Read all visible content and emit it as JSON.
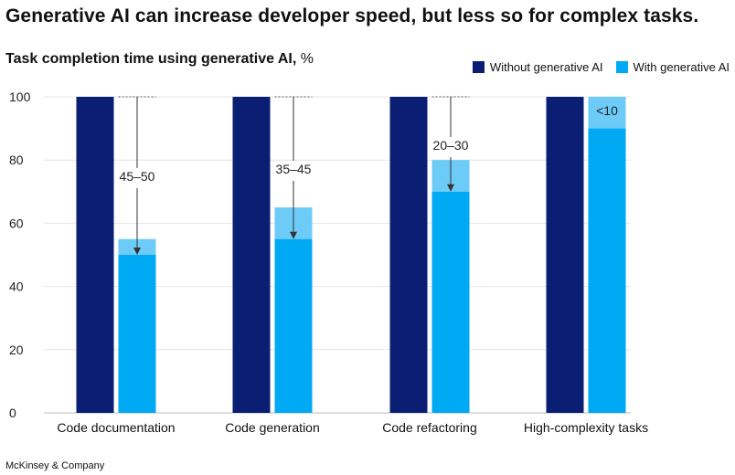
{
  "headline": "Generative AI can increase developer speed, but less so for complex tasks.",
  "subtitle_bold": "Task completion time using generative AI,",
  "subtitle_unit": "%",
  "source": "McKinsey & Company",
  "colors": {
    "without": "#0a1f73",
    "with": "#00a9f4",
    "range": "#6dcbf7",
    "grid": "#e4e4e4",
    "axis": "#bdbdbd"
  },
  "chart_data": {
    "type": "bar",
    "title": "Task completion time using generative AI, %",
    "categories": [
      "Code documentation",
      "Code generation",
      "Code refactoring",
      "High-complexity tasks"
    ],
    "yticks": [
      0,
      20,
      40,
      60,
      80,
      100
    ],
    "ylim": [
      0,
      100
    ],
    "grid": true,
    "legend_position": "top-right",
    "series": [
      {
        "name": "Without generative AI",
        "values": [
          100,
          100,
          100,
          100
        ]
      },
      {
        "name": "With generative AI",
        "values": [
          50,
          55,
          70,
          90
        ],
        "range_top": [
          55,
          65,
          80,
          100
        ]
      }
    ],
    "annotations": [
      "45–50",
      "35–45",
      "20–30",
      "<10"
    ]
  }
}
